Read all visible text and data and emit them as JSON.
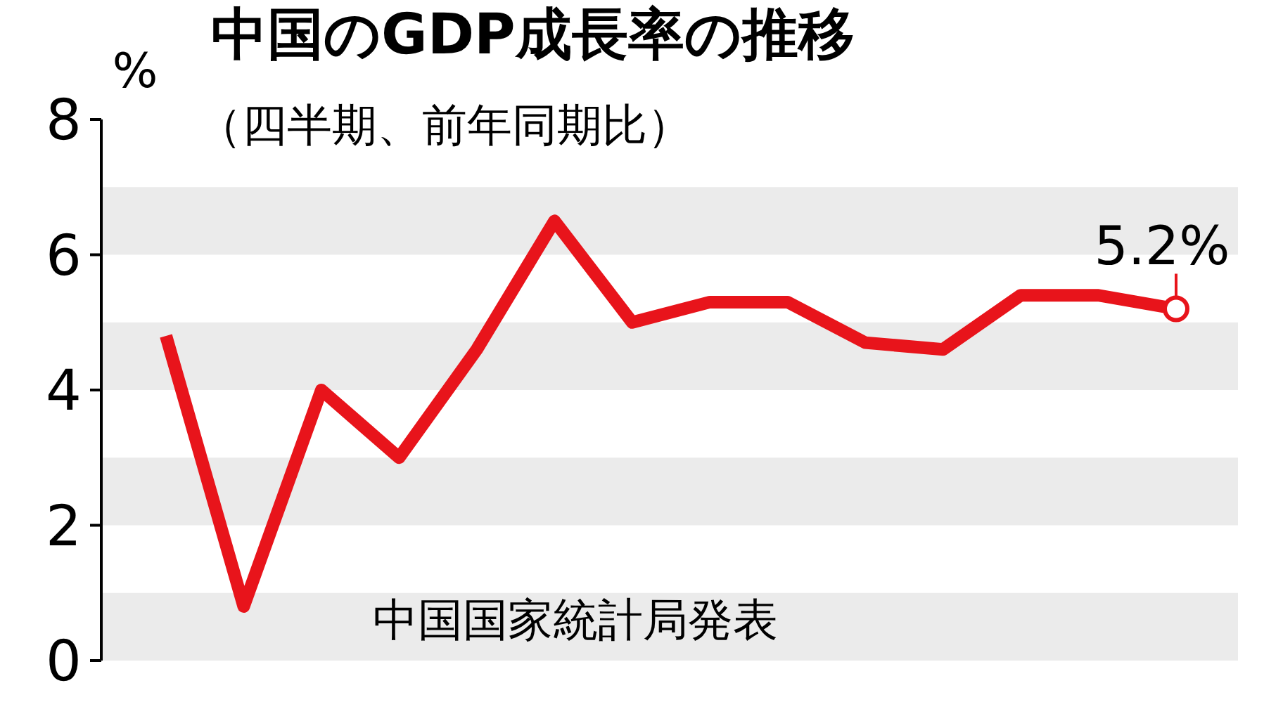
{
  "chart_data": {
    "type": "line",
    "title": "中国のGDP成長率の推移",
    "subtitle": "（四半期、前年同期比）",
    "ylabel": "%",
    "annotations": [
      "中国国家統計局発表"
    ],
    "categories": [
      null,
      null,
      null,
      null,
      null,
      null,
      null,
      null,
      null,
      null,
      null,
      null,
      null,
      null
    ],
    "series": [
      {
        "color": "#e8141b",
        "values": [
          4.8,
          0.8,
          4.0,
          3.0,
          4.6,
          6.5,
          5.0,
          5.3,
          5.3,
          4.7,
          4.6,
          5.4,
          5.4,
          5.2
        ],
        "value_labels": [
          null,
          null,
          null,
          null,
          null,
          null,
          null,
          null,
          null,
          null,
          null,
          null,
          null,
          "5.2%"
        ]
      }
    ],
    "ylim": [
      0,
      8
    ],
    "yticks": [
      0,
      2,
      4,
      6,
      8
    ],
    "grid": false,
    "marker": "none",
    "line_style": "solid",
    "bands": [
      {
        "axis": "y",
        "from": 0,
        "to": 1,
        "color": "#ebebeb"
      },
      {
        "axis": "y",
        "from": 2,
        "to": 3,
        "color": "#ebebeb"
      },
      {
        "axis": "y",
        "from": 4,
        "to": 5,
        "color": "#ebebeb"
      },
      {
        "axis": "y",
        "from": 6,
        "to": 7,
        "color": "#ebebeb"
      }
    ]
  }
}
